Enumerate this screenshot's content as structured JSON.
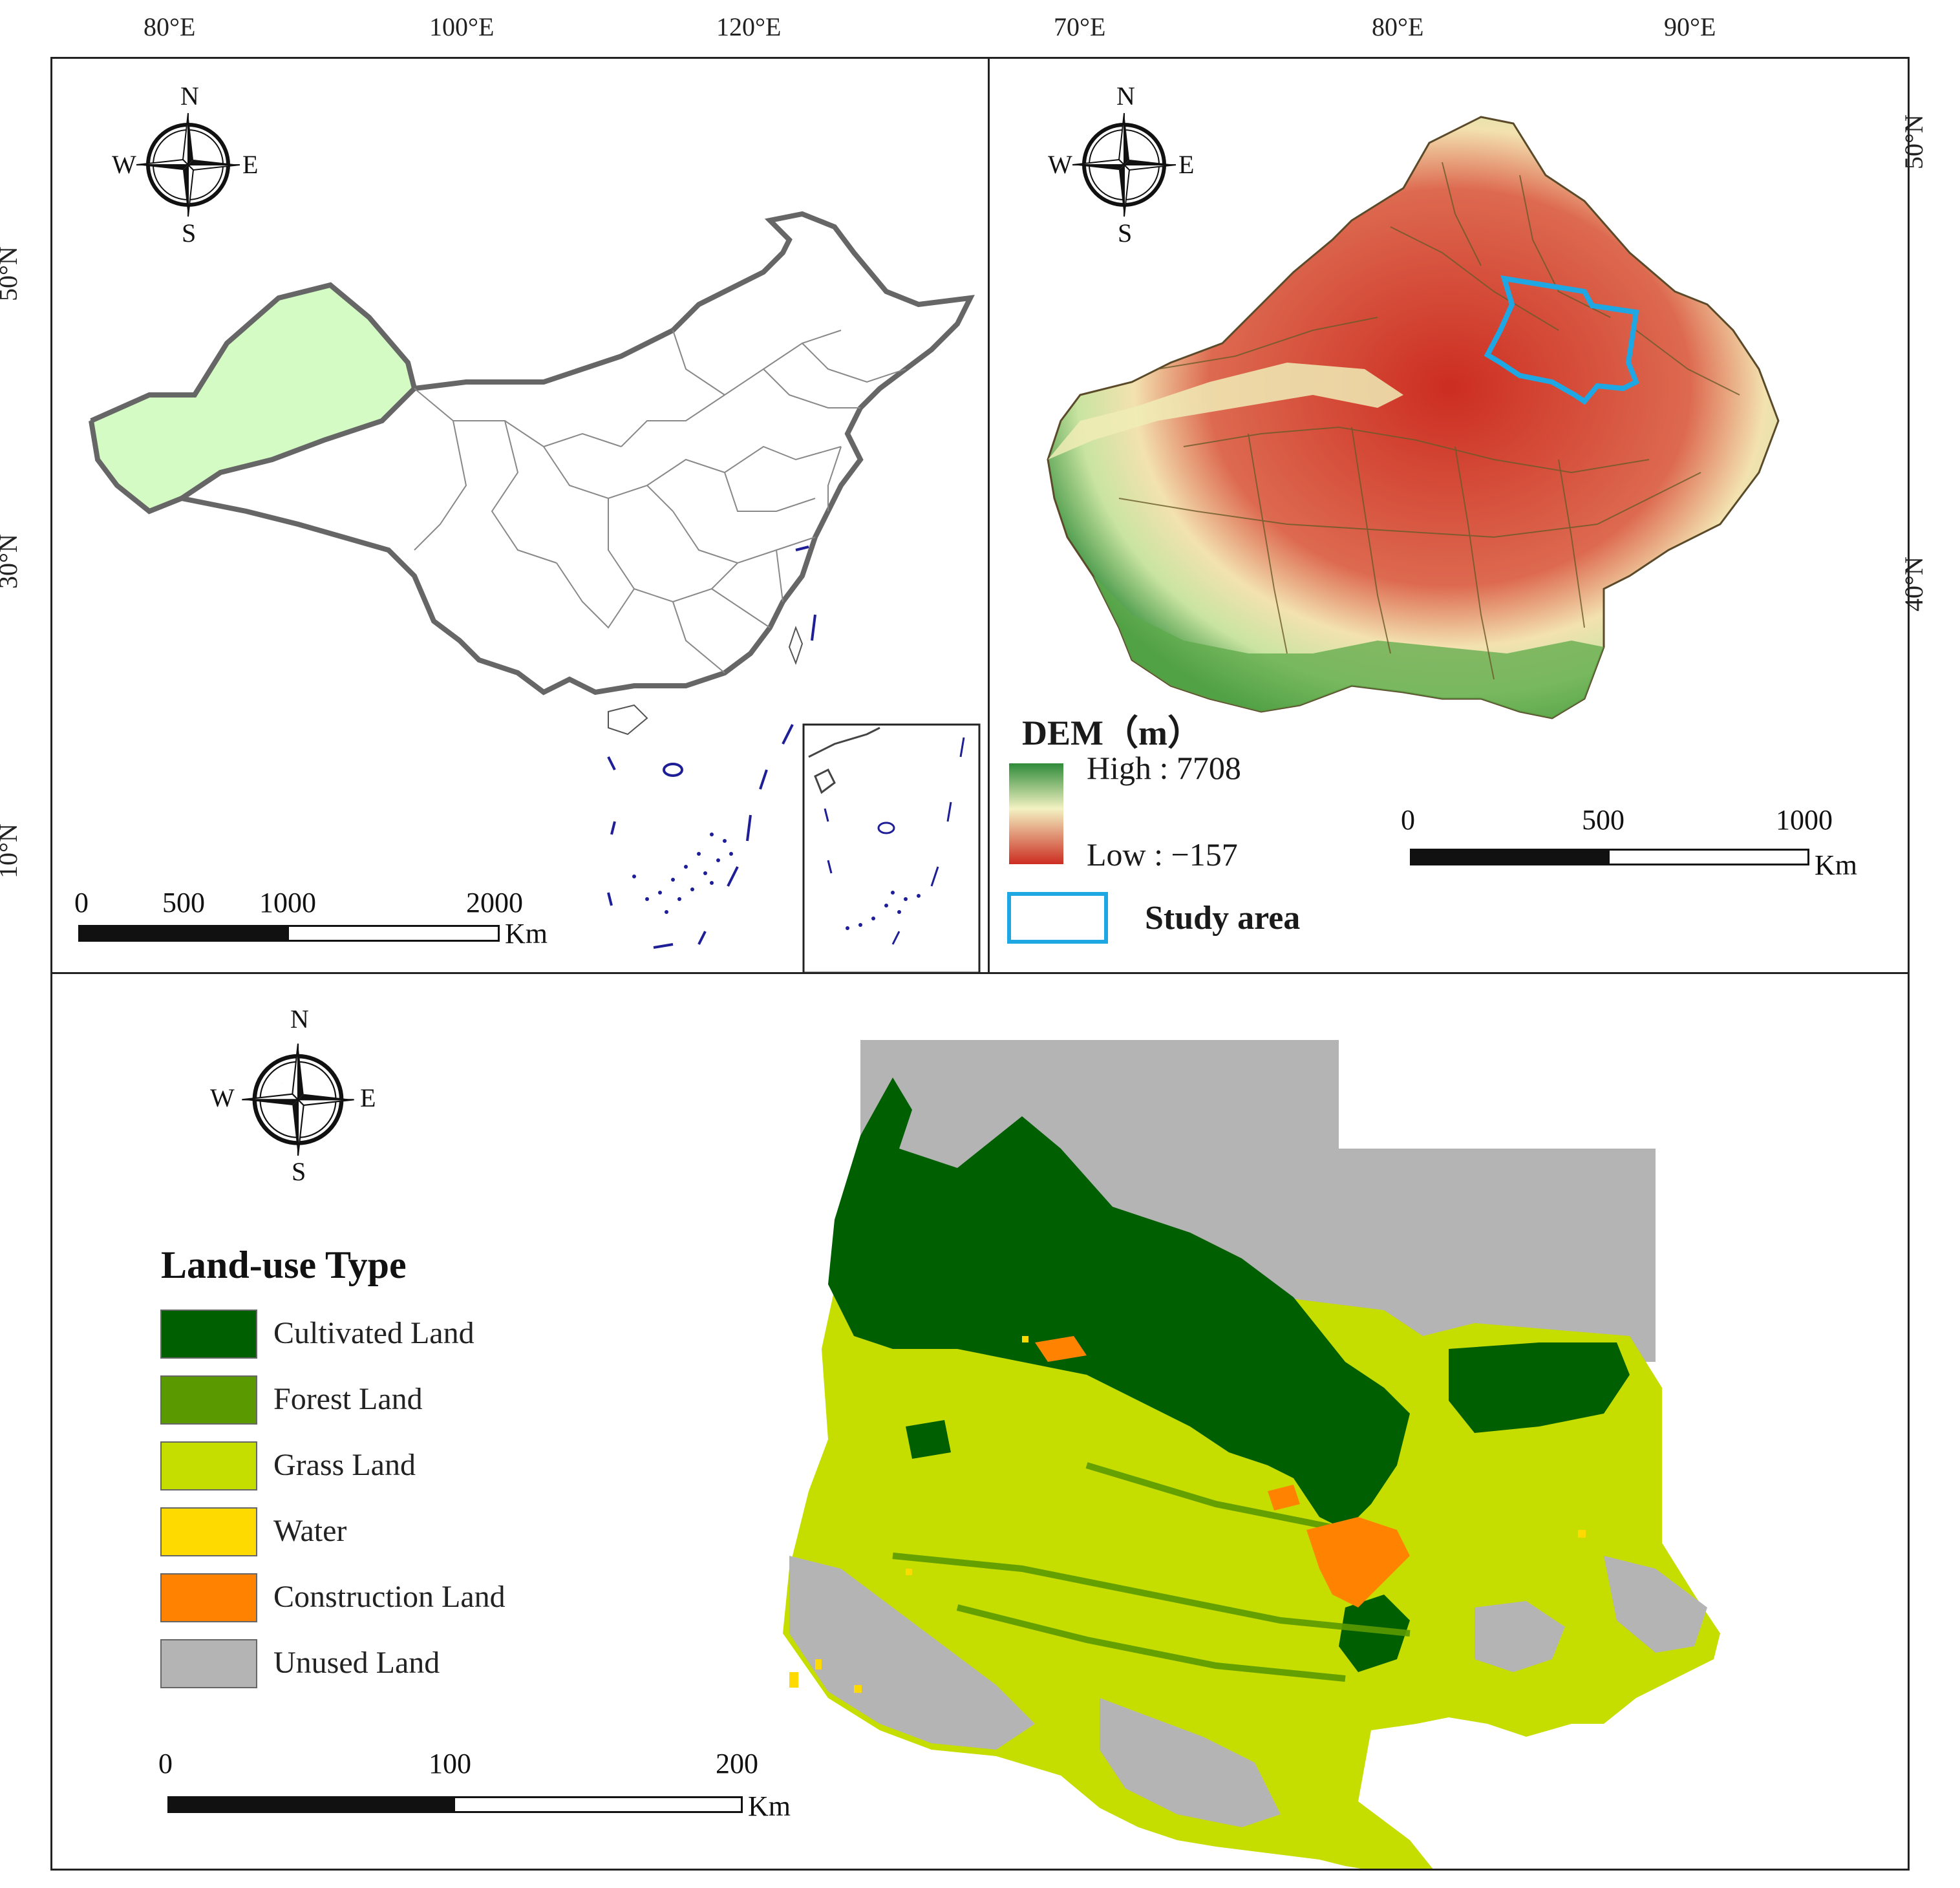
{
  "colors": {
    "xinjiang_fill": "#d4fbc4",
    "dem_high": "#2f8b3a",
    "dem_mid": "#f3f2c2",
    "dem_low": "#cc2d21",
    "study_area": "#1fa7e3",
    "ocean_islands": "#1e1e96",
    "cultivated": "#005f00",
    "forest": "#5a9a00",
    "grass": "#c6dd00",
    "water": "#ffda00",
    "construction": "#ff8200",
    "unused": "#b4b4b4"
  },
  "panel_a": {
    "x_ticks": [
      "80°E",
      "100°E",
      "120°E"
    ],
    "y_ticks": [
      "50°N",
      "30°N",
      "10°N"
    ],
    "compass": {
      "icon": "compass-rose-icon",
      "n": "N",
      "s": "S",
      "e": "E",
      "w": "W"
    },
    "scale": {
      "labels": [
        "0",
        "500",
        "1000",
        "2000"
      ],
      "unit": "Km"
    }
  },
  "panel_b": {
    "x_ticks": [
      "70°E",
      "80°E",
      "90°E"
    ],
    "y_ticks": [
      "50°N",
      "40°N"
    ],
    "compass": {
      "icon": "compass-rose-icon",
      "n": "N",
      "s": "S",
      "e": "E",
      "w": "W"
    },
    "legend": {
      "title": "DEM（m）",
      "high": "High : 7708",
      "low": "Low : −157",
      "study_area": "Study area"
    },
    "scale": {
      "labels": [
        "0",
        "500",
        "1000"
      ],
      "unit": "Km"
    }
  },
  "panel_c": {
    "compass": {
      "icon": "compass-rose-icon",
      "n": "N",
      "s": "S",
      "e": "E",
      "w": "W"
    },
    "legend": {
      "title": "Land-use Type",
      "items": [
        "Cultivated Land",
        "Forest Land",
        "Grass Land",
        "Water",
        "Construction Land",
        "Unused Land"
      ]
    },
    "scale": {
      "labels": [
        "0",
        "100",
        "200"
      ],
      "unit": "Km"
    }
  }
}
